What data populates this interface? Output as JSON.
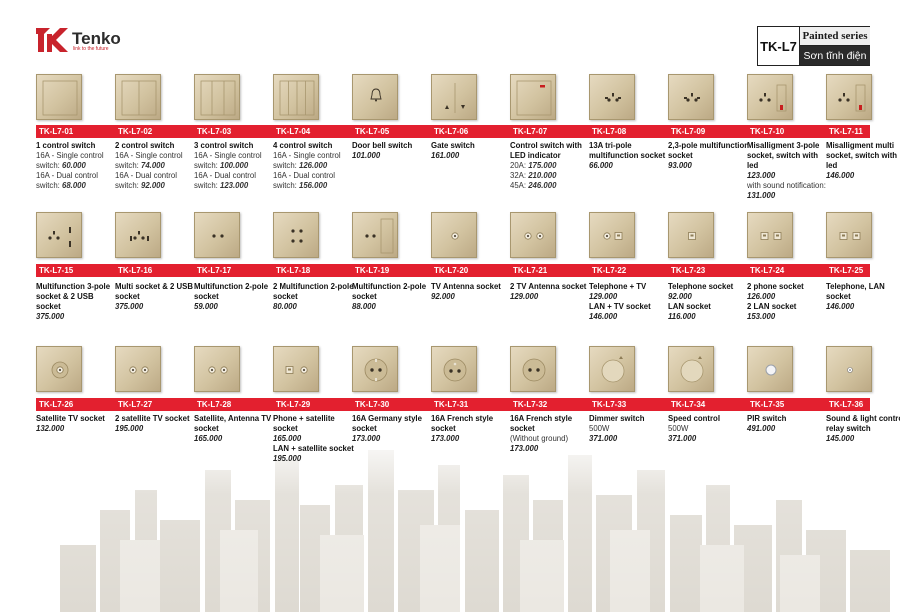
{
  "brand": {
    "name": "Tenko",
    "tagline": "link to the future",
    "color": "#c8232c"
  },
  "series": {
    "code": "TK-L7",
    "label_en": "Painted series",
    "label_vi": "Sơn tĩnh điện"
  },
  "colors": {
    "bar": "#e3202f",
    "plate": "#d2c3a0"
  },
  "products": [
    {
      "code": "TK-L7-01",
      "icon": "switch-1",
      "lines": [
        {
          "k": "t",
          "v": "1 control switch"
        },
        {
          "k": "pl",
          "a": "16A - Single control switch: ",
          "b": "60.000"
        },
        {
          "k": "pl",
          "a": "16A - Dual control switch: ",
          "b": "68.000"
        }
      ]
    },
    {
      "code": "TK-L7-02",
      "icon": "switch-2",
      "lines": [
        {
          "k": "t",
          "v": "2 control switch"
        },
        {
          "k": "pl",
          "a": "16A - Single control switch: ",
          "b": "74.000"
        },
        {
          "k": "pl",
          "a": "16A - Dual control switch: ",
          "b": "92.000"
        }
      ]
    },
    {
      "code": "TK-L7-03",
      "icon": "switch-3",
      "lines": [
        {
          "k": "t",
          "v": "3 control switch"
        },
        {
          "k": "pl",
          "a": "16A - Single control switch: ",
          "b": "100.000"
        },
        {
          "k": "pl",
          "a": "16A - Dual control switch: ",
          "b": "123.000"
        }
      ]
    },
    {
      "code": "TK-L7-04",
      "icon": "switch-4",
      "lines": [
        {
          "k": "t",
          "v": "4 control switch"
        },
        {
          "k": "pl",
          "a": "16A - Single control switch: ",
          "b": "126.000"
        },
        {
          "k": "pl",
          "a": "16A - Dual control switch: ",
          "b": "156.000"
        }
      ]
    },
    {
      "code": "TK-L7-05",
      "icon": "bell",
      "lines": [
        {
          "k": "t",
          "v": "Door bell switch"
        },
        {
          "k": "p",
          "v": "101.000"
        }
      ]
    },
    {
      "code": "TK-L7-06",
      "icon": "gate",
      "lines": [
        {
          "k": "t",
          "v": "Gate switch"
        },
        {
          "k": "p",
          "v": "161.000"
        }
      ]
    },
    {
      "code": "TK-L7-07",
      "icon": "led-switch",
      "lines": [
        {
          "k": "t",
          "v": "Control switch with LED indicator"
        },
        {
          "k": "pl",
          "a": "20A: ",
          "b": "175.000"
        },
        {
          "k": "pl",
          "a": "32A: ",
          "b": "210.000"
        },
        {
          "k": "pl",
          "a": "45A: ",
          "b": "246.000"
        }
      ]
    },
    {
      "code": "TK-L7-08",
      "icon": "multi-socket",
      "lines": [
        {
          "k": "t",
          "v": "13A tri-pole multifunction socket"
        },
        {
          "k": "p",
          "v": "66.000"
        }
      ]
    },
    {
      "code": "TK-L7-09",
      "icon": "multi-socket",
      "lines": [
        {
          "k": "t",
          "v": "2,3-pole multifunction socket"
        },
        {
          "k": "p",
          "v": "93.000"
        }
      ]
    },
    {
      "code": "TK-L7-10",
      "icon": "socket-switch-led",
      "lines": [
        {
          "k": "t",
          "v": "Misalligment 3-pole socket, switch with led"
        },
        {
          "k": "p",
          "v": "123.000"
        },
        {
          "k": "s",
          "v": "with sound notification:"
        },
        {
          "k": "p",
          "v": "131.000"
        }
      ]
    },
    {
      "code": "TK-L7-11",
      "icon": "socket-switch-led",
      "lines": [
        {
          "k": "t",
          "v": "Misalligment multi socket, switch with led"
        },
        {
          "k": "p",
          "v": "146.000"
        }
      ]
    },
    {
      "code": "TK-L7-15",
      "icon": "socket-usb",
      "lines": [
        {
          "k": "t",
          "v": "Multifunction 3-pole socket & 2 USB socket"
        },
        {
          "k": "p",
          "v": "375.000"
        }
      ]
    },
    {
      "code": "TK-L7-16",
      "icon": "multi-usb",
      "lines": [
        {
          "k": "t",
          "v": "Multi socket & 2 USB socket"
        },
        {
          "k": "p",
          "v": "375.000"
        }
      ]
    },
    {
      "code": "TK-L7-17",
      "icon": "socket-2pole",
      "lines": [
        {
          "k": "t",
          "v": "Multifunction 2-pole socket"
        },
        {
          "k": "p",
          "v": "59.000"
        }
      ]
    },
    {
      "code": "TK-L7-18",
      "icon": "socket-2pole-double",
      "lines": [
        {
          "k": "t",
          "v": "2 Multifunction 2-pole socket"
        },
        {
          "k": "p",
          "v": "80.000"
        }
      ]
    },
    {
      "code": "TK-L7-19",
      "icon": "socket-2pole-switch",
      "lines": [
        {
          "k": "t",
          "v": "Multifunction 2-pole socket"
        },
        {
          "k": "p",
          "v": "88.000"
        }
      ]
    },
    {
      "code": "TK-L7-20",
      "icon": "tv",
      "lines": [
        {
          "k": "t",
          "v": "TV Antenna socket"
        },
        {
          "k": "p",
          "v": "92.000"
        }
      ]
    },
    {
      "code": "TK-L7-21",
      "icon": "tv-2",
      "lines": [
        {
          "k": "t",
          "v": "2 TV Antenna socket"
        },
        {
          "k": "p",
          "v": "129.000"
        }
      ]
    },
    {
      "code": "TK-L7-22",
      "icon": "tel-tv",
      "lines": [
        {
          "k": "t",
          "v": "Telephone + TV"
        },
        {
          "k": "p",
          "v": "129.000"
        },
        {
          "k": "t",
          "v": "LAN + TV socket"
        },
        {
          "k": "p",
          "v": "146.000"
        }
      ]
    },
    {
      "code": "TK-L7-23",
      "icon": "tel",
      "lines": [
        {
          "k": "t",
          "v": "Telephone socket"
        },
        {
          "k": "p",
          "v": "92.000"
        },
        {
          "k": "t",
          "v": "LAN socket"
        },
        {
          "k": "p",
          "v": "116.000"
        }
      ]
    },
    {
      "code": "TK-L7-24",
      "icon": "tel-2",
      "lines": [
        {
          "k": "t",
          "v": "2 phone socket"
        },
        {
          "k": "p",
          "v": "126.000"
        },
        {
          "k": "t",
          "v": "2 LAN socket"
        },
        {
          "k": "p",
          "v": "153.000"
        }
      ]
    },
    {
      "code": "TK-L7-25",
      "icon": "tel-lan",
      "lines": [
        {
          "k": "t",
          "v": "Telephone, LAN socket"
        },
        {
          "k": "p",
          "v": "146.000"
        }
      ]
    },
    {
      "code": "TK-L7-26",
      "icon": "sat",
      "lines": [
        {
          "k": "t",
          "v": "Satellite TV socket"
        },
        {
          "k": "p",
          "v": "132.000"
        }
      ]
    },
    {
      "code": "TK-L7-27",
      "icon": "sat-2",
      "lines": [
        {
          "k": "t",
          "v": "2 satellite TV socket"
        },
        {
          "k": "p",
          "v": "195.000"
        }
      ]
    },
    {
      "code": "TK-L7-28",
      "icon": "sat-2",
      "lines": [
        {
          "k": "t",
          "v": "Satellite, Antenna TV socket"
        },
        {
          "k": "p",
          "v": "165.000"
        }
      ]
    },
    {
      "code": "TK-L7-29",
      "icon": "phone-sat",
      "lines": [
        {
          "k": "t",
          "v": "Phone + satellite socket"
        },
        {
          "k": "p",
          "v": "165.000"
        },
        {
          "k": "t",
          "v": "LAN + satellite socket"
        },
        {
          "k": "p",
          "v": "195.000"
        }
      ]
    },
    {
      "code": "TK-L7-30",
      "icon": "schuko",
      "lines": [
        {
          "k": "t",
          "v": "16A Germany style socket"
        },
        {
          "k": "p",
          "v": "173.000"
        }
      ]
    },
    {
      "code": "TK-L7-31",
      "icon": "french",
      "lines": [
        {
          "k": "t",
          "v": "16A French style socket"
        },
        {
          "k": "p",
          "v": "173.000"
        }
      ]
    },
    {
      "code": "TK-L7-32",
      "icon": "french-nog",
      "lines": [
        {
          "k": "t",
          "v": "16A French style socket"
        },
        {
          "k": "s",
          "v": "(Without ground)"
        },
        {
          "k": "p",
          "v": "173.000"
        }
      ]
    },
    {
      "code": "TK-L7-33",
      "icon": "dimmer",
      "lines": [
        {
          "k": "t",
          "v": "Dimmer switch"
        },
        {
          "k": "s",
          "v": "500W"
        },
        {
          "k": "p",
          "v": "371.000"
        }
      ]
    },
    {
      "code": "TK-L7-34",
      "icon": "dimmer",
      "lines": [
        {
          "k": "t",
          "v": "Speed control"
        },
        {
          "k": "s",
          "v": "500W"
        },
        {
          "k": "p",
          "v": "371.000"
        }
      ]
    },
    {
      "code": "TK-L7-35",
      "icon": "pir",
      "lines": [
        {
          "k": "t",
          "v": "PIR switch"
        },
        {
          "k": "p",
          "v": "491.000"
        }
      ]
    },
    {
      "code": "TK-L7-36",
      "icon": "sound",
      "lines": [
        {
          "k": "t",
          "v": "Sound & light control relay switch"
        },
        {
          "k": "p",
          "v": "145.000"
        }
      ]
    }
  ]
}
